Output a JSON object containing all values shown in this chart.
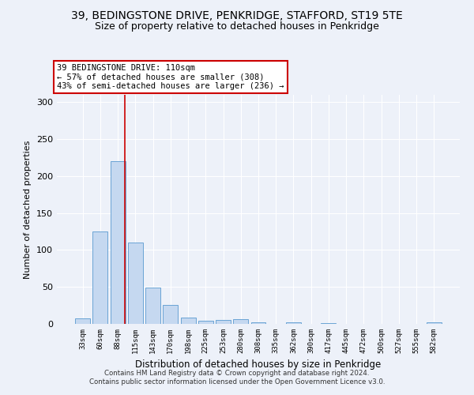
{
  "title": "39, BEDINGSTONE DRIVE, PENKRIDGE, STAFFORD, ST19 5TE",
  "subtitle": "Size of property relative to detached houses in Penkridge",
  "xlabel": "Distribution of detached houses by size in Penkridge",
  "ylabel": "Number of detached properties",
  "categories": [
    "33sqm",
    "60sqm",
    "88sqm",
    "115sqm",
    "143sqm",
    "170sqm",
    "198sqm",
    "225sqm",
    "253sqm",
    "280sqm",
    "308sqm",
    "335sqm",
    "362sqm",
    "390sqm",
    "417sqm",
    "445sqm",
    "472sqm",
    "500sqm",
    "527sqm",
    "555sqm",
    "582sqm"
  ],
  "values": [
    8,
    125,
    220,
    110,
    49,
    26,
    9,
    4,
    5,
    6,
    2,
    0,
    2,
    0,
    1,
    0,
    0,
    0,
    0,
    0,
    2
  ],
  "bar_color": "#c5d8f0",
  "bar_edge_color": "#6aa3d5",
  "annotation_text": "39 BEDINGSTONE DRIVE: 110sqm\n← 57% of detached houses are smaller (308)\n43% of semi-detached houses are larger (236) →",
  "annotation_box_color": "#ffffff",
  "annotation_box_edge": "#cc0000",
  "vline_color": "#cc0000",
  "background_color": "#edf1f9",
  "ylim": [
    0,
    310
  ],
  "yticks": [
    0,
    50,
    100,
    150,
    200,
    250,
    300
  ],
  "footer_line1": "Contains HM Land Registry data © Crown copyright and database right 2024.",
  "footer_line2": "Contains public sector information licensed under the Open Government Licence v3.0.",
  "title_fontsize": 10,
  "subtitle_fontsize": 9,
  "vline_x": 2.42
}
